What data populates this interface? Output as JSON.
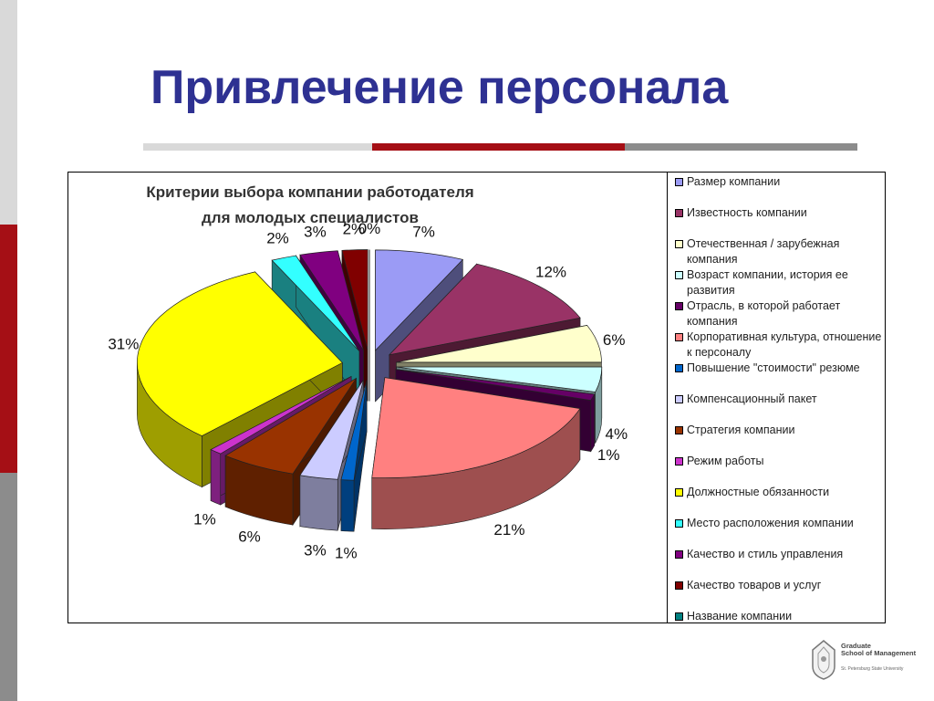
{
  "slide": {
    "title": "Привлечение персонала"
  },
  "colors": {
    "title": "#2e3192",
    "accent_red": "#a50f15",
    "gray_dark": "#8c8c8c",
    "gray_light": "#d9d9d9"
  },
  "chart_data": {
    "type": "pie",
    "title": "Критерии выбора компании работодателя",
    "subtitle": "для молодых специалистов",
    "legend_position": "right",
    "series": [
      {
        "name": "Размер компании",
        "value": 7,
        "label": "7%",
        "color": "#9b9bf5"
      },
      {
        "name": "Известность компании",
        "value": 12,
        "label": "12%",
        "color": "#993366"
      },
      {
        "name": "Отечественная / зарубежная компания",
        "value": 6,
        "label": "6%",
        "color": "#ffffcc"
      },
      {
        "name": "Возраст компании, история ее развития",
        "value": 4,
        "label": "4%",
        "color": "#ccffff"
      },
      {
        "name": "Отрасль, в которой работает компания",
        "value": 1,
        "label": "1%",
        "color": "#660066"
      },
      {
        "name": "Корпоративная культура, отношение к персоналу",
        "value": 21,
        "label": "21%",
        "color": "#ff8080"
      },
      {
        "name": "Повышение \"стоимости\" резюме",
        "value": 1,
        "label": "1%",
        "color": "#0066cc"
      },
      {
        "name": "Компенсационный пакет",
        "value": 3,
        "label": "3%",
        "color": "#ccccff"
      },
      {
        "name": "Стратегия компании",
        "value": 6,
        "label": "6%",
        "color": "#993300"
      },
      {
        "name": "Режим работы",
        "value": 1,
        "label": "1%",
        "color": "#cc33cc"
      },
      {
        "name": "Должностные обязанности",
        "value": 31,
        "label": "31%",
        "color": "#ffff00"
      },
      {
        "name": "Место расположения компании",
        "value": 2,
        "label": "2%",
        "color": "#33ffff"
      },
      {
        "name": "Качество и стиль управления",
        "value": 3,
        "label": "3%",
        "color": "#800080"
      },
      {
        "name": "Качество товаров и услуг",
        "value": 2,
        "label": "2%",
        "color": "#800000"
      },
      {
        "name": "Название компании",
        "value": 0,
        "label": "0%",
        "color": "#008080"
      }
    ]
  },
  "logo": {
    "line1": "Graduate",
    "line2": "School of Management",
    "line3": "St. Petersburg State University"
  }
}
